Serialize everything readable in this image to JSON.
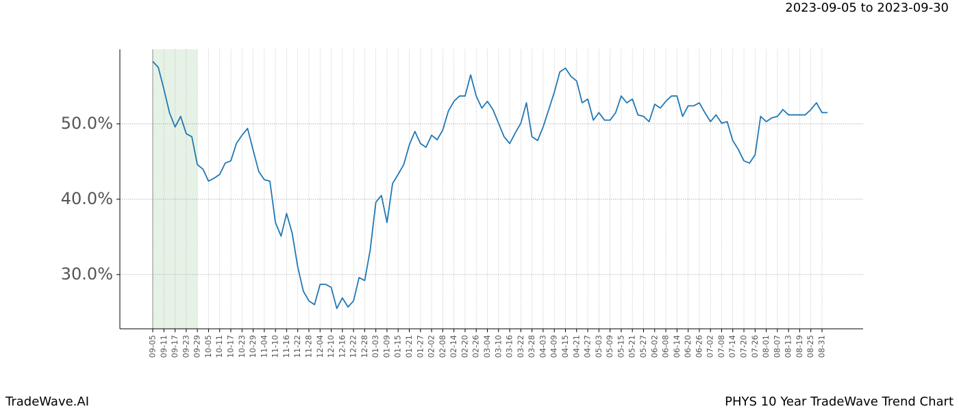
{
  "header": {
    "date_range": "2023-09-05 to 2023-09-30"
  },
  "footer": {
    "brand": "TradeWave.AI",
    "title": "PHYS 10 Year TradeWave Trend Chart"
  },
  "chart_data": {
    "type": "line",
    "categories": [
      "09-05",
      null,
      "09-11",
      null,
      "09-17",
      null,
      "09-23",
      null,
      "09-29",
      null,
      "10-05",
      null,
      "10-11",
      null,
      "10-17",
      null,
      "10-23",
      null,
      "10-29",
      null,
      "11-04",
      null,
      "11-10",
      null,
      "11-16",
      null,
      "11-22",
      null,
      "11-28",
      null,
      "12-04",
      null,
      "12-10",
      null,
      "12-16",
      null,
      "12-22",
      null,
      "12-28",
      null,
      "01-03",
      null,
      "01-09",
      null,
      "01-15",
      null,
      "01-21",
      null,
      "01-27",
      null,
      "02-02",
      null,
      "02-08",
      null,
      "02-14",
      null,
      "02-20",
      null,
      "02-26",
      null,
      "03-04",
      null,
      "03-10",
      null,
      "03-16",
      null,
      "03-22",
      null,
      "03-28",
      null,
      "04-03",
      null,
      "04-09",
      null,
      "04-15",
      null,
      "04-21",
      null,
      "04-27",
      null,
      "05-03",
      null,
      "05-09",
      null,
      "05-15",
      null,
      "05-21",
      null,
      "05-27",
      null,
      "06-02",
      null,
      "06-08",
      null,
      "06-14",
      null,
      "06-20",
      null,
      "06-26",
      null,
      "07-02",
      null,
      "07-08",
      null,
      "07-14",
      null,
      "07-20",
      null,
      "07-26",
      null,
      "08-01",
      null,
      "08-07",
      null,
      "08-13",
      null,
      "08-19",
      null,
      "08-25",
      null,
      "08-31",
      null
    ],
    "series": [
      {
        "color": "#1f77b4",
        "values": [
          58.3,
          57.5,
          54.6,
          51.5,
          49.6,
          51.0,
          48.7,
          48.3,
          44.6,
          44.0,
          42.4,
          42.8,
          43.3,
          44.8,
          45.1,
          47.4,
          48.5,
          49.4,
          46.5,
          43.7,
          42.6,
          42.4,
          36.9,
          35.1,
          38.1,
          35.5,
          31.0,
          27.8,
          26.5,
          26.0,
          28.7,
          28.7,
          28.3,
          25.5,
          26.9,
          25.7,
          26.5,
          29.6,
          29.2,
          33.3,
          39.6,
          40.5,
          36.9,
          42.1,
          43.3,
          44.6,
          47.2,
          49.0,
          47.4,
          46.9,
          48.5,
          47.9,
          49.2,
          51.7,
          53.0,
          53.7,
          53.7,
          56.5,
          53.7,
          52.1,
          53.0,
          51.9,
          50.1,
          48.3,
          47.4,
          48.8,
          50.1,
          52.8,
          48.3,
          47.8,
          49.6,
          51.9,
          54.2,
          56.9,
          57.4,
          56.3,
          55.7,
          52.8,
          53.3,
          50.5,
          51.5,
          50.5,
          50.5,
          51.5,
          53.7,
          52.8,
          53.3,
          51.2,
          51.0,
          50.3,
          52.6,
          52.1,
          53.0,
          53.7,
          53.7,
          51.0,
          52.4,
          52.4,
          52.8,
          51.5,
          50.3,
          51.2,
          50.1,
          50.3,
          47.8,
          46.6,
          45.1,
          44.8,
          45.9,
          51.0,
          50.3,
          50.8,
          51.0,
          51.9,
          51.2,
          51.2,
          51.2,
          51.2,
          51.9,
          52.8,
          51.5,
          51.5
        ]
      }
    ],
    "shade_range": [
      0,
      8
    ],
    "shade_color": "#e6f2e6",
    "ylim": [
      22.8,
      59.9
    ],
    "yticks": [
      {
        "value": 30,
        "label": "30.0%"
      },
      {
        "value": 40,
        "label": "40.0%"
      },
      {
        "value": 50,
        "label": "50.0%"
      }
    ],
    "grid": true
  }
}
